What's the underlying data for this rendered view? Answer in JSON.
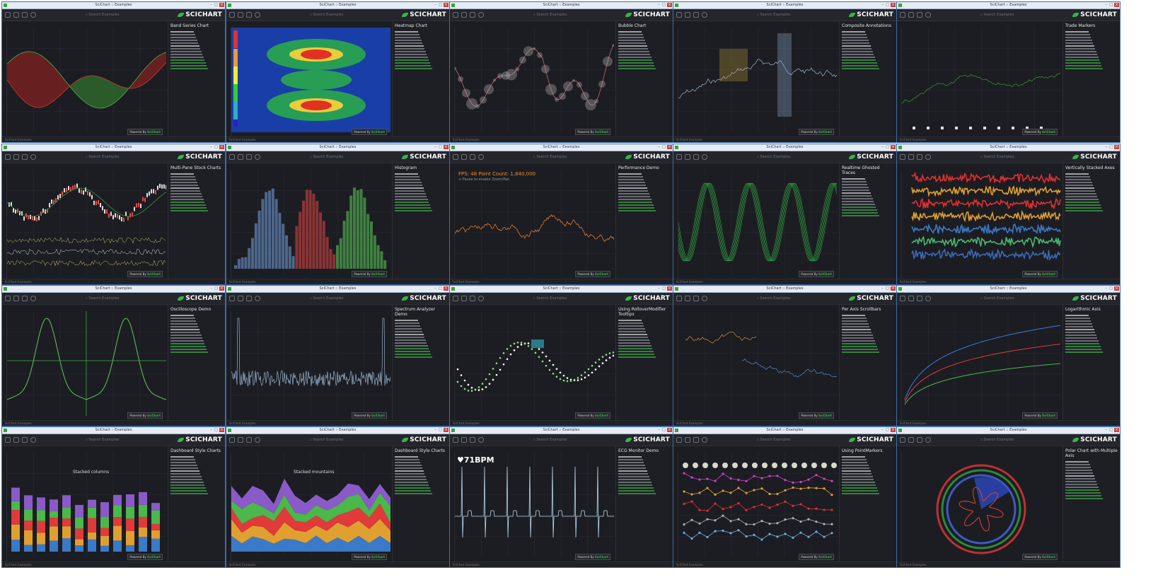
{
  "window_title": "SciChart :: Examples",
  "logo_text": "SCICHART",
  "search_placeholder": "Search Examples",
  "powered_by": "Powered By",
  "powered_brand": "SciChart",
  "status_text": "SciChart Examples",
  "colors": {
    "accent_green": "#39b54a",
    "window_border": "#3b6da8",
    "panel_bg": "#1c1d22"
  },
  "tiles": [
    {
      "id": "band-series",
      "title": "Band Series Chart",
      "kind": "band"
    },
    {
      "id": "heatmap",
      "title": "Heatmap Chart",
      "kind": "heatmap"
    },
    {
      "id": "bubble",
      "title": "Bubble Chart",
      "kind": "bubble"
    },
    {
      "id": "composite-annotations",
      "title": "Composite Annotations",
      "kind": "annot"
    },
    {
      "id": "trade-markers",
      "title": "Trade Markers",
      "kind": "trade"
    },
    {
      "id": "multi-pane-stock",
      "title": "Multi-Pane Stock Charts",
      "kind": "stock"
    },
    {
      "id": "histogram",
      "title": "Histogram",
      "kind": "histogram"
    },
    {
      "id": "performance-demo",
      "title": "Performance Demo",
      "kind": "perf"
    },
    {
      "id": "realtime-ghosted",
      "title": "Realtime Ghosted Traces",
      "kind": "ghost"
    },
    {
      "id": "vertically-stacked",
      "title": "Vertically Stacked Axes",
      "kind": "vstack"
    },
    {
      "id": "oscilloscope",
      "title": "Oscilloscope Demo",
      "kind": "osc"
    },
    {
      "id": "spectrum-analyzer",
      "title": "Spectrum Analyzer Demo",
      "kind": "spectrum"
    },
    {
      "id": "rollover-modifier",
      "title": "Using RolloverModifier Tooltips",
      "kind": "rollover"
    },
    {
      "id": "per-axis-scrollbars",
      "title": "Per Axis Scrollbars",
      "kind": "scroll"
    },
    {
      "id": "logarithmic-axis",
      "title": "Logarithmic Axis",
      "kind": "log"
    },
    {
      "id": "dashboard-columns",
      "title": "Dashboard Style Charts",
      "kind": "dashcol"
    },
    {
      "id": "dashboard-mountains",
      "title": "Dashboard Style Charts",
      "kind": "dashmtn"
    },
    {
      "id": "ecg-monitor",
      "title": "ECG Monitor Demo",
      "kind": "ecg"
    },
    {
      "id": "point-markers",
      "title": "Using PointMarkers",
      "kind": "markers"
    },
    {
      "id": "polar-chart",
      "title": "Polar Chart with Multiple Axis",
      "kind": "polar"
    }
  ],
  "overlays": {
    "fps_text": "FPS: 48    Point Count: 1,840,000",
    "pause_text": "< Pause to enable Zoom/Pan",
    "bpm_text": "71BPM",
    "stacked_columns_title": "Stacked columns",
    "stacked_mountains_title": "Stacked mountains"
  }
}
